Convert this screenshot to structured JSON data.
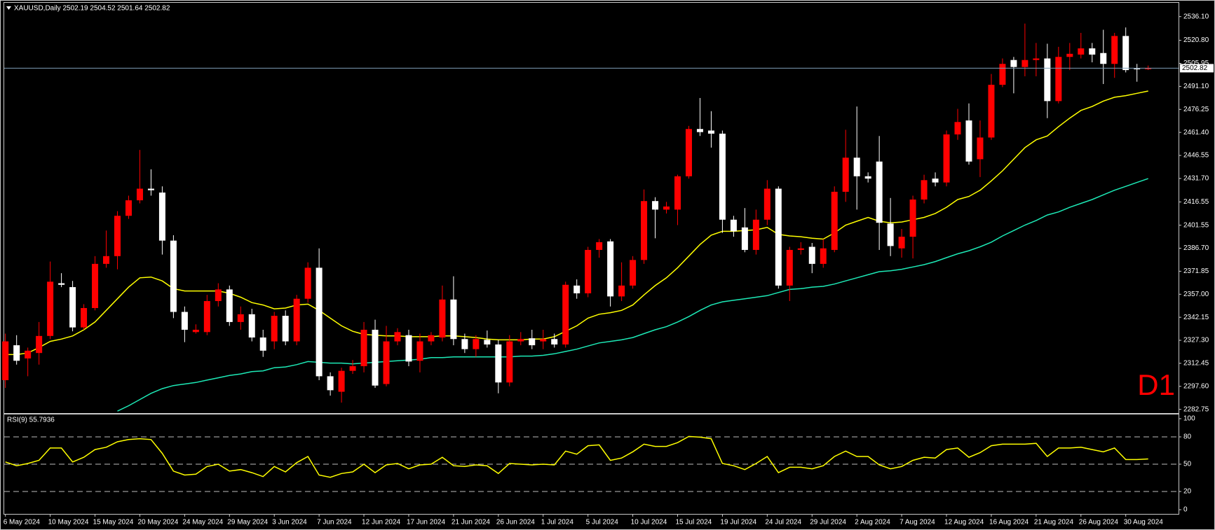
{
  "chart_data": [
    {
      "type": "candlestick",
      "title": "XAUUSD,Daily  2502.19 2504.52 2501.64 2502.82",
      "annotation": "D1",
      "up_color": "#ff0000",
      "down_color": "#ffffff",
      "categories": [
        "6 May 2024",
        null,
        null,
        null,
        "10 May 2024",
        null,
        null,
        null,
        "15 May 2024",
        null,
        null,
        null,
        "20 May 2024",
        null,
        null,
        null,
        "24 May 2024",
        null,
        null,
        null,
        "29 May 2024",
        null,
        null,
        null,
        "3 Jun 2024",
        null,
        null,
        null,
        "7 Jun 2024",
        null,
        null,
        null,
        "12 Jun 2024",
        null,
        null,
        null,
        "17 Jun 2024",
        null,
        null,
        null,
        "21 Jun 2024",
        null,
        null,
        null,
        "26 Jun 2024",
        null,
        null,
        null,
        "1 Jul 2024",
        null,
        null,
        null,
        "5 Jul 2024",
        null,
        null,
        null,
        "10 Jul 2024",
        null,
        null,
        null,
        "15 Jul 2024",
        null,
        null,
        null,
        "19 Jul 2024",
        null,
        null,
        null,
        "24 Jul 2024",
        null,
        null,
        null,
        "29 Jul 2024",
        null,
        null,
        null,
        "2 Aug 2024",
        null,
        null,
        null,
        "7 Aug 2024",
        null,
        null,
        null,
        "12 Aug 2024",
        null,
        null,
        null,
        "16 Aug 2024",
        null,
        null,
        null,
        "21 Aug 2024",
        null,
        null,
        null,
        "26 Aug 2024",
        null,
        null,
        null,
        "30 Aug 2024",
        null,
        null
      ],
      "open": [
        2301.6,
        2324.1,
        2315.6,
        2319.1,
        2330.1,
        2364.1,
        2361.6,
        2335.6,
        2348.1,
        2376.6,
        2381.6,
        2407.6,
        2417.6,
        2425.1,
        2422.6,
        2391.6,
        2345.6,
        2332.6,
        2332.6,
        2352.6,
        2360.1,
        2339.1,
        2344.1,
        2329.1,
        2326.6,
        2343.1,
        2326.6,
        2354.1,
        2374.1,
        2304.1,
        2294.1,
        2307.6,
        2310.6,
        2334.1,
        2299.1,
        2326.6,
        2330.6,
        2314.1,
        2326.6,
        2329.1,
        2353.6,
        2328.1,
        2321.6,
        2327.6,
        2324.6,
        2300.1,
        2326.6,
        2328.6,
        2326.6,
        2328.1,
        2324.6,
        2362.6,
        2357.6,
        2385.6,
        2391.1,
        2355.6,
        2362.6,
        2379.1,
        2417.1,
        2411.6,
        2411.6,
        2433.1,
        2463.6,
        2462.6,
        2460.6,
        2405.1,
        2400.1,
        2385.6,
        2405.1,
        2425.1,
        2362.6,
        2385.6,
        2387.6,
        2376.6,
        2385.6,
        2423.1,
        2445.1,
        2433.1,
        2442.6,
        2402.6,
        2386.6,
        2394.1,
        2418.1,
        2431.6,
        2429.1,
        2460.1,
        2469.1,
        2444.1,
        2458.1,
        2492.1,
        2508.1,
        2503.6,
        2508.1,
        2509.1,
        2481.6,
        2510.1,
        2511.6,
        2515.6,
        2512.6,
        2505.6,
        2523.6,
        2502.6,
        2502.19
      ],
      "high": [
        2331.6,
        2330.6,
        2322.6,
        2339.1,
        2378.1,
        2370.6,
        2365.6,
        2350.6,
        2381.6,
        2398.1,
        2410.6,
        2420.6,
        2450.1,
        2437.6,
        2426.6,
        2395.1,
        2349.1,
        2337.6,
        2356.6,
        2364.1,
        2362.6,
        2349.1,
        2347.6,
        2334.1,
        2345.6,
        2346.6,
        2356.6,
        2377.6,
        2386.6,
        2306.6,
        2309.6,
        2314.6,
        2339.1,
        2340.6,
        2336.6,
        2335.1,
        2334.1,
        2331.6,
        2332.6,
        2362.6,
        2368.6,
        2331.6,
        2330.6,
        2333.6,
        2327.6,
        2330.6,
        2332.6,
        2334.1,
        2334.1,
        2331.6,
        2365.1,
        2366.6,
        2387.6,
        2392.6,
        2392.6,
        2377.6,
        2381.6,
        2424.6,
        2419.6,
        2416.6,
        2434.1,
        2465.6,
        2483.6,
        2475.1,
        2462.6,
        2407.6,
        2412.6,
        2411.6,
        2430.6,
        2426.6,
        2387.6,
        2390.6,
        2390.1,
        2392.6,
        2426.6,
        2463.1,
        2478.1,
        2435.6,
        2459.1,
        2419.1,
        2399.1,
        2420.6,
        2434.1,
        2435.6,
        2462.6,
        2476.6,
        2480.1,
        2469.1,
        2499.1,
        2509.1,
        2510.1,
        2531.6,
        2519.1,
        2518.6,
        2516.6,
        2519.1,
        2525.6,
        2519.1,
        2527.6,
        2525.6,
        2529.1,
        2505.6,
        2504.52
      ],
      "low": [
        2296.6,
        2311.6,
        2304.1,
        2311.6,
        2328.1,
        2361.6,
        2333.1,
        2334.1,
        2346.6,
        2374.1,
        2373.1,
        2405.6,
        2415.6,
        2420.6,
        2382.6,
        2341.6,
        2326.1,
        2331.6,
        2330.6,
        2349.1,
        2336.6,
        2334.1,
        2326.6,
        2316.6,
        2321.6,
        2324.1,
        2324.1,
        2351.6,
        2301.6,
        2291.6,
        2287.1,
        2305.6,
        2306.6,
        2296.6,
        2297.6,
        2324.1,
        2310.6,
        2306.6,
        2324.1,
        2326.6,
        2324.1,
        2319.1,
        2316.6,
        2322.6,
        2293.1,
        2297.6,
        2324.1,
        2321.6,
        2321.6,
        2322.6,
        2322.6,
        2354.1,
        2355.1,
        2380.6,
        2349.1,
        2352.6,
        2360.6,
        2376.6,
        2393.1,
        2409.1,
        2401.6,
        2431.6,
        2459.1,
        2451.6,
        2396.6,
        2394.1,
        2384.1,
        2382.6,
        2401.6,
        2360.6,
        2352.6,
        2382.6,
        2370.6,
        2374.1,
        2384.1,
        2416.6,
        2411.6,
        2429.1,
        2385.6,
        2381.6,
        2380.6,
        2380.1,
        2415.6,
        2426.6,
        2426.6,
        2456.6,
        2440.6,
        2432.6,
        2456.6,
        2490.6,
        2486.6,
        2497.6,
        2497.6,
        2470.6,
        2480.1,
        2501.6,
        2509.1,
        2506.6,
        2492.6,
        2496.6,
        2500.1,
        2494.1,
        2501.64
      ],
      "close": [
        2326.6,
        2314.1,
        2320.6,
        2330.1,
        2365.1,
        2363.1,
        2335.6,
        2348.1,
        2376.6,
        2381.6,
        2407.6,
        2417.6,
        2425.1,
        2424.1,
        2391.6,
        2345.6,
        2334.1,
        2334.1,
        2352.6,
        2360.1,
        2339.1,
        2344.1,
        2329.1,
        2320.6,
        2343.1,
        2326.6,
        2354.1,
        2374.1,
        2304.1,
        2295.1,
        2307.6,
        2310.6,
        2334.1,
        2298.1,
        2326.6,
        2332.6,
        2313.6,
        2326.6,
        2330.6,
        2353.6,
        2328.1,
        2321.6,
        2328.1,
        2324.6,
        2300.1,
        2326.6,
        2328.1,
        2324.1,
        2328.1,
        2324.6,
        2363.1,
        2357.6,
        2385.6,
        2390.6,
        2355.6,
        2362.6,
        2379.1,
        2417.1,
        2411.6,
        2413.6,
        2433.1,
        2463.6,
        2461.6,
        2460.6,
        2405.1,
        2397.6,
        2385.6,
        2405.1,
        2425.1,
        2362.6,
        2385.6,
        2386.6,
        2376.6,
        2386.6,
        2423.1,
        2445.1,
        2433.1,
        2431.6,
        2403.1,
        2388.1,
        2394.1,
        2418.1,
        2430.6,
        2429.1,
        2460.1,
        2468.1,
        2442.6,
        2458.1,
        2492.1,
        2505.6,
        2503.6,
        2508.1,
        2509.1,
        2481.6,
        2510.1,
        2512.1,
        2515.6,
        2511.6,
        2505.6,
        2523.6,
        2501.6,
        2502.1,
        2502.82
      ],
      "overlays": [
        {
          "color": "#ffff00",
          "values": [
            2318.1,
            2318.1,
            2319.1,
            2322.6,
            2326.6,
            2328.1,
            2330.1,
            2334.1,
            2339.1,
            2346.6,
            2354.1,
            2361.6,
            2367.6,
            2368.1,
            2365.6,
            2360.6,
            2359.1,
            2359.1,
            2359.1,
            2359.1,
            2357.6,
            2355.1,
            2351.6,
            2350.1,
            2347.6,
            2348.1,
            2350.1,
            2350.6,
            2346.6,
            2341.6,
            2336.6,
            2333.1,
            2331.1,
            2330.6,
            2330.1,
            2330.1,
            2329.6,
            2329.6,
            2329.6,
            2330.1,
            2330.1,
            2329.6,
            2329.1,
            2328.1,
            2327.6,
            2327.6,
            2327.6,
            2328.1,
            2328.1,
            2329.6,
            2333.1,
            2336.6,
            2341.6,
            2344.1,
            2345.1,
            2346.6,
            2350.1,
            2356.6,
            2362.6,
            2367.6,
            2374.1,
            2381.6,
            2389.1,
            2395.1,
            2397.6,
            2397.6,
            2398.1,
            2398.6,
            2400.1,
            2395.6,
            2394.6,
            2394.1,
            2393.1,
            2392.6,
            2396.6,
            2401.6,
            2404.1,
            2406.6,
            2404.1,
            2403.1,
            2403.6,
            2405.1,
            2406.6,
            2409.1,
            2413.1,
            2418.1,
            2420.1,
            2424.1,
            2430.1,
            2436.6,
            2444.1,
            2451.6,
            2456.6,
            2459.1,
            2465.1,
            2470.6,
            2475.6,
            2478.1,
            2481.6,
            2484.1,
            2485.1,
            2486.6,
            2488.1
          ]
        },
        {
          "color": "#1de9b6",
          "values": [
            null,
            null,
            null,
            null,
            null,
            null,
            null,
            null,
            null,
            null,
            2281.6,
            2285.1,
            2289.1,
            2293.1,
            2296.1,
            2298.1,
            2299.1,
            2300.1,
            2301.6,
            2303.1,
            2304.6,
            2305.6,
            2307.1,
            2307.6,
            2309.6,
            2310.1,
            2311.6,
            2313.6,
            2313.1,
            2312.6,
            2312.6,
            2312.1,
            2312.6,
            2313.1,
            2313.6,
            2314.1,
            2314.6,
            2315.1,
            2316.1,
            2316.1,
            2316.6,
            2316.6,
            2316.6,
            2316.6,
            2316.6,
            2316.6,
            2317.1,
            2317.1,
            2317.6,
            2318.6,
            2320.1,
            2321.6,
            2323.6,
            2325.6,
            2326.6,
            2327.6,
            2329.1,
            2331.6,
            2334.1,
            2336.1,
            2339.1,
            2342.6,
            2346.6,
            2350.1,
            2352.1,
            2353.1,
            2354.1,
            2355.1,
            2356.1,
            2358.1,
            2360.1,
            2360.6,
            2361.6,
            2362.1,
            2363.6,
            2365.6,
            2367.6,
            2369.6,
            2371.6,
            2372.1,
            2373.1,
            2374.6,
            2376.1,
            2378.1,
            2380.6,
            2383.1,
            2385.1,
            2387.6,
            2390.6,
            2394.6,
            2398.1,
            2401.6,
            2404.6,
            2408.1,
            2410.1,
            2413.1,
            2415.6,
            2418.1,
            2421.1,
            2424.1,
            2426.6,
            2429.1,
            2431.6
          ]
        }
      ],
      "current_price": 2502.82,
      "ylim": [
        2280.8,
        2544.1
      ],
      "yticks": [
        {
          "value": 2536.1,
          "label": "2536.10"
        },
        {
          "value": 2520.8,
          "label": "2520.80"
        },
        {
          "value": 2505.95,
          "label": "2505.95"
        },
        {
          "value": 2491.1,
          "label": "2491.10"
        },
        {
          "value": 2476.25,
          "label": "2476.25"
        },
        {
          "value": 2461.4,
          "label": "2461.40"
        },
        {
          "value": 2446.55,
          "label": "2446.55"
        },
        {
          "value": 2431.7,
          "label": "2431.70"
        },
        {
          "value": 2416.55,
          "label": "2416.55"
        },
        {
          "value": 2401.55,
          "label": "2401.55"
        },
        {
          "value": 2386.7,
          "label": "2386.70"
        },
        {
          "value": 2371.85,
          "label": "2371.85"
        },
        {
          "value": 2357.0,
          "label": "2357.00"
        },
        {
          "value": 2342.15,
          "label": "2342.15"
        },
        {
          "value": 2327.3,
          "label": "2327.30"
        },
        {
          "value": 2312.45,
          "label": "2312.45"
        },
        {
          "value": 2297.6,
          "label": "2297.60"
        },
        {
          "value": 2282.75,
          "label": "2282.75"
        }
      ]
    },
    {
      "type": "line",
      "title": "RSI(9) 55.7936",
      "color": "#ffff00",
      "values": [
        52.5,
        48.3,
        50.8,
        54.2,
        67.8,
        67.8,
        52.5,
        57.6,
        66.1,
        68.6,
        74.6,
        77.1,
        78.0,
        77.1,
        61.9,
        42.4,
        38.1,
        39.0,
        47.5,
        50.0,
        42.4,
        44.1,
        40.7,
        36.4,
        47.5,
        41.5,
        51.7,
        58.5,
        38.1,
        35.6,
        39.8,
        41.5,
        50.0,
        40.7,
        49.2,
        50.8,
        44.9,
        49.2,
        50.0,
        57.6,
        48.3,
        47.5,
        49.2,
        48.3,
        39.8,
        50.8,
        50.0,
        49.2,
        50.0,
        49.2,
        64.4,
        61.0,
        70.3,
        71.2,
        54.2,
        56.8,
        63.6,
        72.0,
        69.5,
        69.5,
        73.7,
        80.5,
        79.7,
        78.0,
        50.8,
        48.3,
        44.1,
        50.8,
        58.5,
        40.7,
        46.6,
        46.6,
        44.9,
        48.3,
        58.5,
        64.4,
        58.5,
        58.5,
        49.2,
        44.9,
        47.5,
        54.2,
        57.6,
        56.8,
        66.1,
        67.8,
        57.6,
        62.7,
        70.3,
        72.0,
        72.0,
        72.0,
        72.9,
        58.5,
        67.8,
        67.8,
        68.6,
        66.1,
        63.6,
        67.8,
        55.1,
        55.1,
        55.7936
      ],
      "ylim": [
        0,
        100
      ],
      "yticks": [
        100,
        80,
        50,
        20,
        0
      ],
      "levels": [
        80,
        50,
        20
      ]
    }
  ]
}
